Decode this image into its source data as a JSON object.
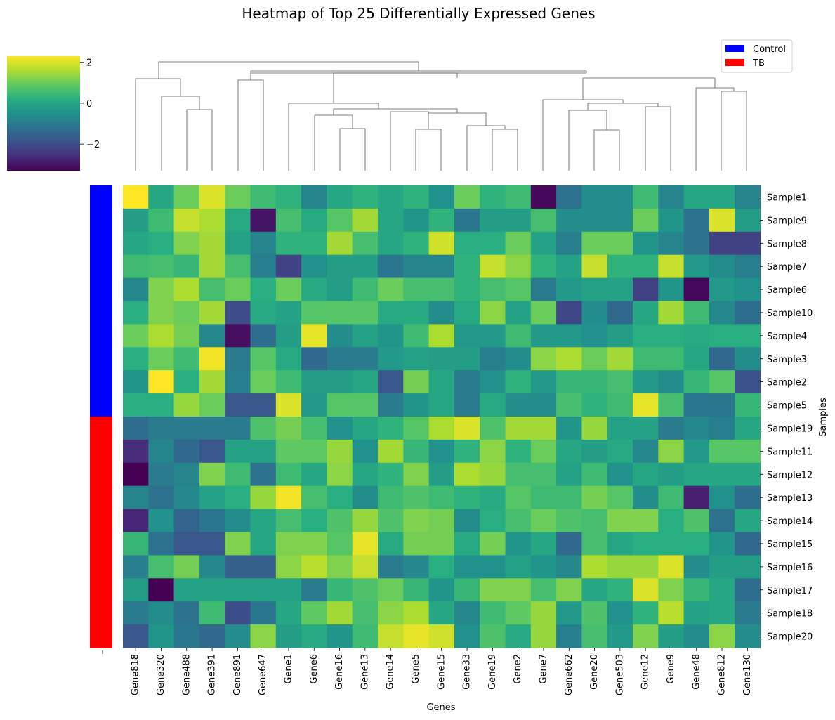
{
  "chart_data": {
    "type": "heatmap",
    "title": "Heatmap of Top 25 Differentially Expressed Genes",
    "xlabel": "Genes",
    "ylabel": "Samples",
    "colormap": "viridis",
    "colorbar": {
      "vmin": -3.3,
      "vmax": 2.3,
      "ticks": [
        -2,
        0,
        2
      ],
      "tick_labels": [
        "−2",
        "0",
        "2"
      ],
      "placement": "top-left"
    },
    "genes": [
      "Gene818",
      "Gene320",
      "Gene488",
      "Gene391",
      "Gene891",
      "Gene647",
      "Gene1",
      "Gene6",
      "Gene16",
      "Gene13",
      "Gene14",
      "Gene5",
      "Gene15",
      "Gene33",
      "Gene19",
      "Gene2",
      "Gene7",
      "Gene662",
      "Gene20",
      "Gene503",
      "Gene12",
      "Gene9",
      "Gene48",
      "Gene812",
      "Gene130"
    ],
    "samples": [
      "Sample1",
      "Sample9",
      "Sample8",
      "Sample7",
      "Sample6",
      "Sample10",
      "Sample4",
      "Sample3",
      "Sample2",
      "Sample5",
      "Sample19",
      "Sample11",
      "Sample12",
      "Sample13",
      "Sample14",
      "Sample15",
      "Sample16",
      "Sample17",
      "Sample18",
      "Sample20"
    ],
    "groups": [
      "Control",
      "Control",
      "Control",
      "Control",
      "Control",
      "Control",
      "Control",
      "Control",
      "Control",
      "Control",
      "TB",
      "TB",
      "TB",
      "TB",
      "TB",
      "TB",
      "TB",
      "TB",
      "TB",
      "TB"
    ],
    "legend": {
      "placement": "top-right",
      "entries": [
        {
          "label": "Control",
          "color": "#0000ff"
        },
        {
          "label": "TB",
          "color": "#ff0000"
        }
      ]
    },
    "values": [
      [
        2.3,
        0,
        1,
        2,
        1,
        0.5,
        0.3,
        -0.8,
        0,
        0.3,
        0,
        0.3,
        -0.5,
        1,
        0.3,
        0.5,
        -3.2,
        -1.2,
        -0.6,
        -0.6,
        0.5,
        -0.8,
        0,
        0,
        -0.8
      ],
      [
        -0.2,
        0.5,
        1.8,
        1.6,
        0.1,
        -3,
        0.6,
        0.1,
        0.8,
        1.5,
        0,
        -0.4,
        0.3,
        -1.1,
        -0.2,
        -0.2,
        0.6,
        -0.6,
        -0.6,
        -0.6,
        1,
        -0.4,
        -1.2,
        2,
        -0.2
      ],
      [
        0,
        0.2,
        1.2,
        1.5,
        -0.1,
        -0.8,
        0.3,
        0.3,
        1.5,
        0.6,
        0,
        0.3,
        1.9,
        0.2,
        0.2,
        1,
        -0.1,
        -0.9,
        1,
        1,
        -0.4,
        -0.8,
        -1.2,
        -2.2,
        -2.2
      ],
      [
        0.5,
        0.6,
        0.4,
        1.5,
        0.6,
        -0.9,
        -2.2,
        -0.5,
        -0.2,
        -0.2,
        -1.1,
        -0.8,
        -0.8,
        0.3,
        1.8,
        1.3,
        0.3,
        -0.1,
        1.8,
        0.3,
        0.3,
        1.8,
        -0.3,
        -0.6,
        -0.9
      ],
      [
        -0.7,
        1.2,
        1.6,
        0.6,
        1,
        0.2,
        1,
        0.1,
        -0.2,
        0.5,
        1,
        0.6,
        0.6,
        0.3,
        0.6,
        0.8,
        -1,
        -0.3,
        -0.1,
        -0.1,
        -2.2,
        -0.4,
        -3.2,
        -0.3,
        -0.5
      ],
      [
        0.2,
        1.2,
        1,
        1.5,
        -2,
        0.1,
        -0.1,
        0.8,
        0.8,
        0.8,
        0.1,
        0.1,
        -0.6,
        0.1,
        1.3,
        -0.1,
        1,
        -2.1,
        -0.6,
        -1.4,
        0,
        1.5,
        0.5,
        -0.7,
        -1.3
      ],
      [
        1,
        1.6,
        1.1,
        -0.7,
        -3.1,
        -1.3,
        -0.2,
        2.1,
        -0.6,
        -0.1,
        -0.4,
        0.5,
        1.6,
        -0.3,
        -0.3,
        0.5,
        -0.3,
        -0.3,
        -0.5,
        -0.2,
        0.2,
        0.2,
        0.1,
        0.2,
        0.2
      ],
      [
        0.2,
        1,
        0.5,
        2.2,
        -1,
        0.8,
        0.1,
        -1.4,
        -1,
        -1,
        -0.3,
        -0.1,
        -0.2,
        -0.2,
        -0.9,
        -0.6,
        1.3,
        1.6,
        1,
        1.5,
        0.5,
        0.5,
        0,
        -1.4,
        -0.6
      ],
      [
        -0.4,
        2.3,
        0.2,
        1.5,
        -0.9,
        1,
        0.5,
        -0.2,
        -0.2,
        0,
        -1.8,
        1.1,
        0,
        -1,
        -0.5,
        0.3,
        -0.3,
        0.4,
        0.4,
        0.6,
        -0.3,
        -0.6,
        0.4,
        0.8,
        -1.9
      ],
      [
        0.2,
        0.2,
        1.4,
        1,
        -1.8,
        -1.8,
        2,
        -0.3,
        0.8,
        0.8,
        -1,
        -0.4,
        0,
        -1,
        0.1,
        -0.6,
        -0.6,
        0.6,
        0.3,
        0.5,
        2.1,
        0.6,
        -1.1,
        -1.1,
        0.4
      ],
      [
        -1.3,
        -1,
        -1,
        -1,
        -1,
        0.7,
        1.1,
        0.6,
        -0.5,
        0,
        0.3,
        0.8,
        1.6,
        2,
        0.7,
        1.5,
        1.5,
        -0.4,
        1.4,
        -0.1,
        -0.1,
        -1,
        -0.7,
        -0.9,
        0
      ],
      [
        -2.6,
        -0.8,
        -1.4,
        -1.8,
        -0.1,
        -0.1,
        0.9,
        0.9,
        1.4,
        -0.5,
        1.5,
        0.4,
        -0.5,
        0.3,
        1.3,
        0.3,
        1,
        0,
        -0.2,
        0.1,
        -0.7,
        1.3,
        -0.3,
        0.8,
        0.8
      ],
      [
        -3.3,
        -1,
        -0.8,
        1.2,
        0.5,
        -1.2,
        0.5,
        0,
        1.3,
        0,
        0.3,
        1.2,
        -0.2,
        1.6,
        1.4,
        0.6,
        0.6,
        -0.1,
        0.5,
        -0.5,
        0,
        -0.2,
        0,
        0,
        0
      ],
      [
        -0.8,
        -1.2,
        -0.7,
        -0.1,
        0.2,
        1.4,
        2.2,
        0.6,
        0.2,
        -0.6,
        0.5,
        0.7,
        0.5,
        0.3,
        0.1,
        0.8,
        0.5,
        0.5,
        1.1,
        0.8,
        -0.6,
        0.5,
        -2.8,
        -0.5,
        -1.3
      ],
      [
        -2.7,
        -0.5,
        -1.5,
        -1.1,
        -0.6,
        0,
        0.6,
        0.2,
        0.7,
        1.4,
        0.7,
        1.2,
        1.1,
        -0.6,
        0.2,
        0.6,
        1,
        0.7,
        0.6,
        1.2,
        1.2,
        0.2,
        0.7,
        -1.2,
        0
      ],
      [
        0.4,
        -1.2,
        -1.8,
        -1.8,
        1.2,
        0,
        1.2,
        1.2,
        0.8,
        2.1,
        0.1,
        1.1,
        1.1,
        0.1,
        1.1,
        -0.4,
        0,
        -1.4,
        0.6,
        0,
        0.2,
        0.2,
        0.2,
        -0.4,
        -1.4
      ],
      [
        -0.9,
        0.6,
        1.1,
        -0.7,
        -1.6,
        -1.6,
        1.3,
        1.7,
        1.2,
        1.8,
        -1,
        -0.7,
        0.2,
        -0.5,
        -0.5,
        -0.1,
        -0.4,
        -0.7,
        1.6,
        1.4,
        1.4,
        2,
        -0.6,
        -0.2,
        -0.2
      ],
      [
        -0.2,
        -3.3,
        -0.1,
        -0.1,
        -0.1,
        -0.1,
        -0.1,
        -1,
        0.4,
        0.7,
        1,
        0.4,
        -0.4,
        0.4,
        1.2,
        1.2,
        0.6,
        1.2,
        0,
        0.3,
        2,
        1.2,
        0.4,
        0,
        -1.3
      ],
      [
        -1,
        -0.6,
        -1.2,
        0.5,
        -2,
        -1.1,
        0,
        0.9,
        1.5,
        0.6,
        1.3,
        1.6,
        0,
        -0.7,
        0.5,
        0.9,
        1.4,
        -0.3,
        0.7,
        -0.5,
        0.3,
        1.7,
        -0.1,
        0,
        -1
      ],
      [
        -1.8,
        -0.4,
        -1.1,
        -1.4,
        -0.6,
        1.3,
        -0.2,
        0.1,
        -0.4,
        0.5,
        1.8,
        2.1,
        1.9,
        -0.5,
        0.7,
        0.1,
        1.4,
        -0.9,
        0.6,
        -0.3,
        1.2,
        -0.2,
        -0.6,
        1.3,
        -0.6
      ]
    ]
  }
}
